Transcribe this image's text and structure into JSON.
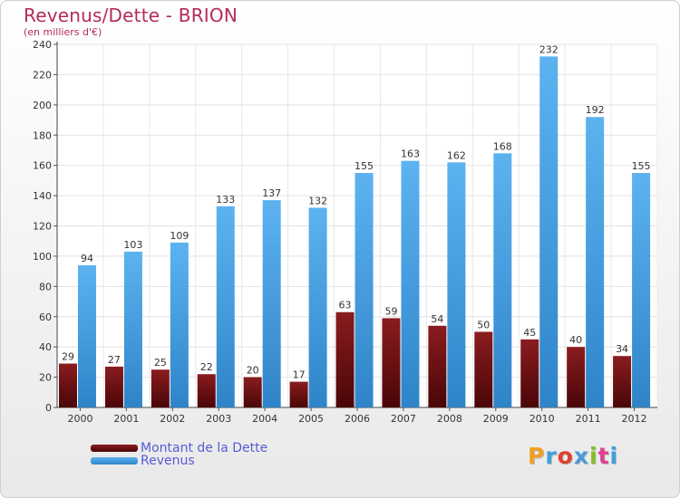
{
  "title": "Revenus/Dette - BRION",
  "subtitle": "(en milliers d'€)",
  "logo_text": "Proxiti",
  "logo_colors": [
    "#f0a020",
    "#3aa0e0",
    "#e04030",
    "#4a9ad8",
    "#80c020",
    "#e04090",
    "#3aa0e0"
  ],
  "chart_data": {
    "type": "bar",
    "categories": [
      "2000",
      "2001",
      "2002",
      "2003",
      "2004",
      "2005",
      "2006",
      "2007",
      "2008",
      "2009",
      "2010",
      "2011",
      "2012"
    ],
    "series": [
      {
        "name": "Montant de la Dette",
        "color": "#7a0f12",
        "values": [
          29,
          27,
          25,
          22,
          20,
          17,
          63,
          59,
          54,
          50,
          45,
          40,
          34
        ]
      },
      {
        "name": "Revenus",
        "color": "#4aa3e6",
        "values": [
          94,
          103,
          109,
          133,
          137,
          132,
          155,
          163,
          162,
          168,
          232,
          192,
          155
        ]
      }
    ],
    "ylim": [
      0,
      240
    ],
    "yticks": [
      0,
      20,
      40,
      60,
      80,
      100,
      120,
      140,
      160,
      180,
      200,
      220,
      240
    ],
    "grid": true,
    "legend": "bottom-left"
  }
}
